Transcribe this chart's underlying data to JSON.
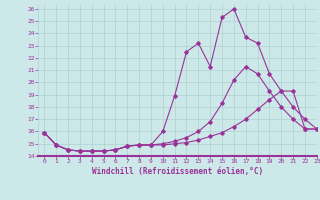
{
  "xlabel": "Windchill (Refroidissement éolien,°C)",
  "bg_color": "#cce8e8",
  "grid_color": "#b0d0d0",
  "line_color": "#993399",
  "xlim": [
    -0.5,
    23
  ],
  "ylim": [
    14,
    26.4
  ],
  "xticks": [
    0,
    1,
    2,
    3,
    4,
    5,
    6,
    7,
    8,
    9,
    10,
    11,
    12,
    13,
    14,
    15,
    16,
    17,
    18,
    19,
    20,
    21,
    22,
    23
  ],
  "yticks": [
    14,
    15,
    16,
    17,
    18,
    19,
    20,
    21,
    22,
    23,
    24,
    25,
    26
  ],
  "line1_x": [
    0,
    1,
    2,
    3,
    4,
    5,
    6,
    7,
    8,
    9,
    10,
    11,
    12,
    13,
    14,
    15,
    16,
    17,
    18,
    19,
    20,
    21,
    22,
    23
  ],
  "line1_y": [
    15.9,
    14.9,
    14.5,
    14.4,
    14.4,
    14.4,
    14.5,
    14.8,
    14.9,
    14.9,
    16.0,
    18.9,
    22.5,
    23.2,
    21.3,
    25.3,
    26.0,
    23.7,
    23.2,
    20.7,
    19.3,
    18.0,
    17.0,
    16.2
  ],
  "line2_x": [
    0,
    1,
    2,
    3,
    4,
    5,
    6,
    7,
    8,
    9,
    10,
    11,
    12,
    13,
    14,
    15,
    16,
    17,
    18,
    19,
    20,
    21,
    22,
    23
  ],
  "line2_y": [
    15.9,
    14.9,
    14.5,
    14.4,
    14.4,
    14.4,
    14.5,
    14.8,
    14.9,
    14.9,
    15.0,
    15.2,
    15.5,
    16.0,
    16.8,
    18.3,
    20.2,
    21.3,
    20.7,
    19.3,
    18.0,
    17.0,
    16.2,
    16.2
  ],
  "line3_x": [
    0,
    1,
    2,
    3,
    4,
    5,
    6,
    7,
    8,
    9,
    10,
    11,
    12,
    13,
    14,
    15,
    16,
    17,
    18,
    19,
    20,
    21,
    22,
    23
  ],
  "line3_y": [
    15.9,
    14.9,
    14.5,
    14.4,
    14.4,
    14.4,
    14.5,
    14.8,
    14.9,
    14.9,
    14.9,
    15.0,
    15.1,
    15.3,
    15.6,
    15.9,
    16.4,
    17.0,
    17.8,
    18.6,
    19.3,
    19.3,
    16.2,
    16.2
  ]
}
